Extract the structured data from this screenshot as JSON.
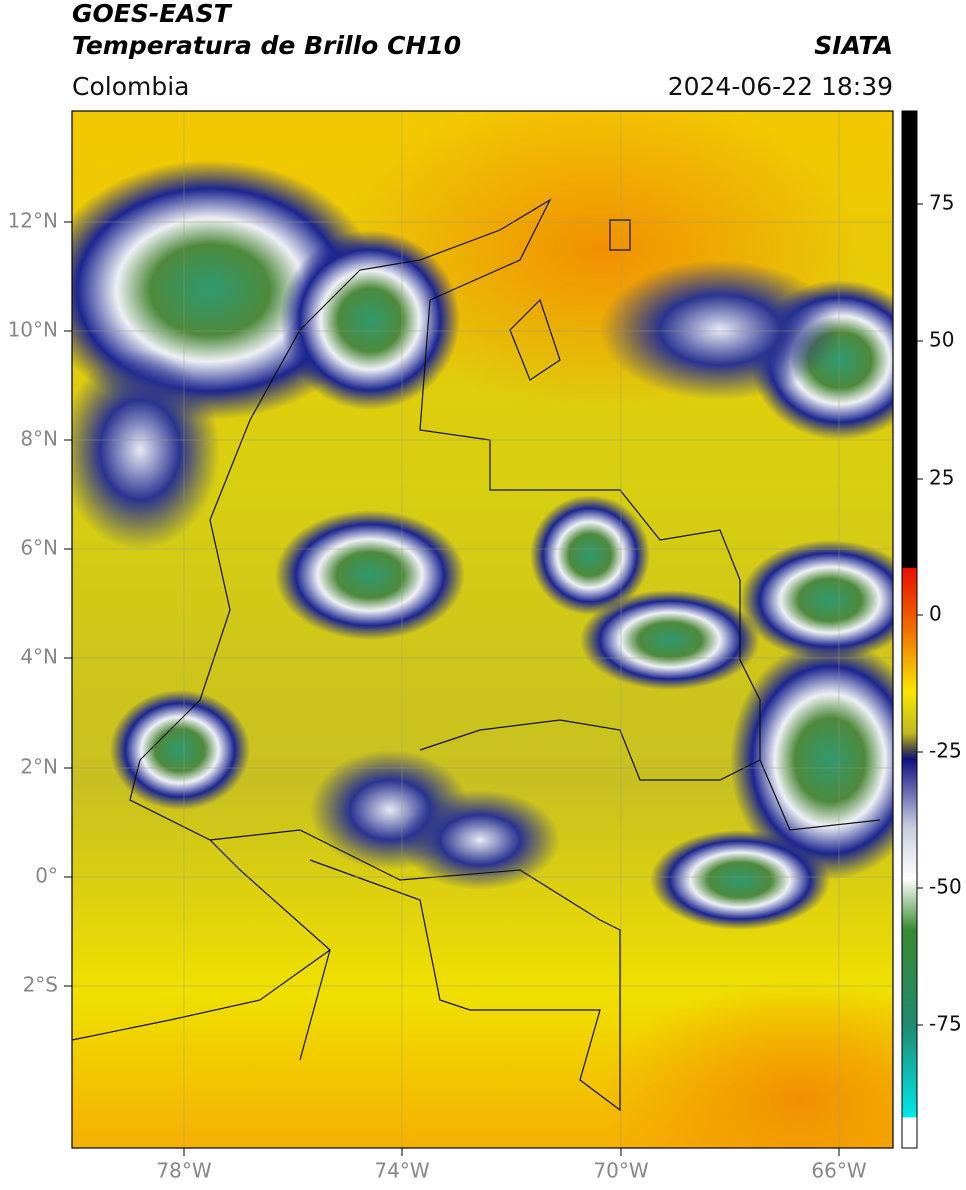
{
  "header": {
    "title": "GOES-EAST",
    "subtitle": "Temperatura de Brillo CH10",
    "region": "Colombia",
    "source": "SIATA",
    "timestamp": "2024-06-22 18:39"
  },
  "map": {
    "lat_labels": [
      "12°N",
      "10°N",
      "8°N",
      "6°N",
      "4°N",
      "2°N",
      "0°",
      "2°S"
    ],
    "lon_labels": [
      "78°W",
      "74°W",
      "70°W",
      "66°W"
    ]
  },
  "colorbar": {
    "ticks": [
      75,
      50,
      25,
      0,
      -25,
      -50,
      -75
    ]
  }
}
